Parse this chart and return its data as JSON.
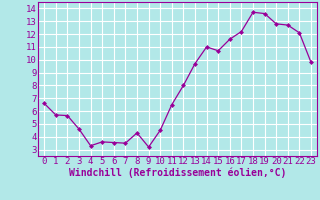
{
  "x": [
    0,
    1,
    2,
    3,
    4,
    5,
    6,
    7,
    8,
    9,
    10,
    11,
    12,
    13,
    14,
    15,
    16,
    17,
    18,
    19,
    20,
    21,
    22,
    23
  ],
  "y": [
    6.6,
    5.7,
    5.65,
    4.6,
    3.3,
    3.6,
    3.55,
    3.5,
    4.3,
    3.2,
    4.5,
    6.5,
    8.0,
    9.7,
    11.0,
    10.7,
    11.6,
    12.2,
    13.7,
    13.6,
    12.8,
    12.7,
    12.1,
    9.8
  ],
  "line_color": "#990099",
  "marker": "D",
  "marker_size": 2,
  "bg_color": "#b2e8e8",
  "grid_color": "#aadddd",
  "xlabel": "Windchill (Refroidissement éolien,°C)",
  "ylabel": "",
  "xlim": [
    -0.5,
    23.5
  ],
  "ylim": [
    2.5,
    14.5
  ],
  "yticks": [
    3,
    4,
    5,
    6,
    7,
    8,
    9,
    10,
    11,
    12,
    13,
    14
  ],
  "xticks": [
    0,
    1,
    2,
    3,
    4,
    5,
    6,
    7,
    8,
    9,
    10,
    11,
    12,
    13,
    14,
    15,
    16,
    17,
    18,
    19,
    20,
    21,
    22,
    23
  ],
  "tick_fontsize": 6.5,
  "xlabel_fontsize": 7.0,
  "spine_color": "#990099",
  "label_color": "#990099"
}
